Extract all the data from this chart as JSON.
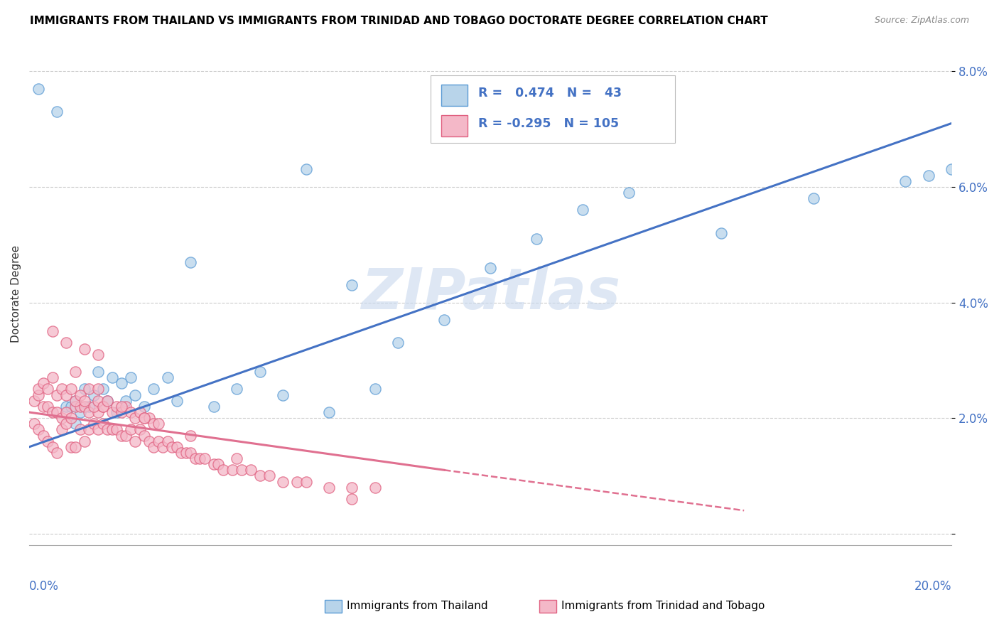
{
  "title": "IMMIGRANTS FROM THAILAND VS IMMIGRANTS FROM TRINIDAD AND TOBAGO DOCTORATE DEGREE CORRELATION CHART",
  "source": "Source: ZipAtlas.com",
  "ylabel": "Doctorate Degree",
  "xlim": [
    0.0,
    0.2
  ],
  "ylim": [
    -0.002,
    0.085
  ],
  "yticks": [
    0.0,
    0.02,
    0.04,
    0.06,
    0.08
  ],
  "ytick_labels": [
    "",
    "2.0%",
    "4.0%",
    "6.0%",
    "8.0%"
  ],
  "legend_R1": "0.474",
  "legend_N1": "43",
  "legend_R2": "-0.295",
  "legend_N2": "105",
  "color_thailand_fill": "#b8d4ea",
  "color_thailand_edge": "#5b9bd5",
  "color_tt_fill": "#f4b8c8",
  "color_tt_edge": "#e06080",
  "color_line_thailand": "#4472c4",
  "color_line_tt": "#e07090",
  "watermark_color": "#c8d8ee",
  "thailand_x": [
    0.002,
    0.006,
    0.008,
    0.009,
    0.01,
    0.01,
    0.011,
    0.012,
    0.013,
    0.014,
    0.015,
    0.016,
    0.017,
    0.018,
    0.019,
    0.02,
    0.021,
    0.022,
    0.023,
    0.025,
    0.027,
    0.03,
    0.032,
    0.035,
    0.04,
    0.045,
    0.05,
    0.055,
    0.06,
    0.065,
    0.07,
    0.075,
    0.08,
    0.09,
    0.1,
    0.11,
    0.12,
    0.13,
    0.15,
    0.17,
    0.19,
    0.195,
    0.2
  ],
  "thailand_y": [
    0.077,
    0.073,
    0.022,
    0.022,
    0.019,
    0.023,
    0.021,
    0.025,
    0.022,
    0.024,
    0.028,
    0.025,
    0.023,
    0.027,
    0.021,
    0.026,
    0.023,
    0.027,
    0.024,
    0.022,
    0.025,
    0.027,
    0.023,
    0.047,
    0.022,
    0.025,
    0.028,
    0.024,
    0.063,
    0.021,
    0.043,
    0.025,
    0.033,
    0.037,
    0.046,
    0.051,
    0.056,
    0.059,
    0.052,
    0.058,
    0.061,
    0.062,
    0.063
  ],
  "tt_x": [
    0.001,
    0.001,
    0.002,
    0.002,
    0.003,
    0.003,
    0.004,
    0.004,
    0.005,
    0.005,
    0.006,
    0.006,
    0.007,
    0.007,
    0.008,
    0.008,
    0.009,
    0.009,
    0.01,
    0.01,
    0.011,
    0.011,
    0.012,
    0.012,
    0.013,
    0.013,
    0.014,
    0.015,
    0.015,
    0.016,
    0.016,
    0.017,
    0.018,
    0.019,
    0.02,
    0.021,
    0.022,
    0.023,
    0.024,
    0.025,
    0.026,
    0.027,
    0.028,
    0.029,
    0.03,
    0.031,
    0.032,
    0.033,
    0.034,
    0.035,
    0.036,
    0.037,
    0.038,
    0.04,
    0.041,
    0.042,
    0.044,
    0.046,
    0.048,
    0.05,
    0.052,
    0.055,
    0.058,
    0.06,
    0.065,
    0.07,
    0.075,
    0.008,
    0.012,
    0.015,
    0.002,
    0.003,
    0.004,
    0.005,
    0.006,
    0.007,
    0.008,
    0.009,
    0.01,
    0.011,
    0.012,
    0.013,
    0.014,
    0.015,
    0.016,
    0.017,
    0.018,
    0.019,
    0.02,
    0.021,
    0.022,
    0.023,
    0.024,
    0.025,
    0.026,
    0.027,
    0.028,
    0.005,
    0.01,
    0.015,
    0.02,
    0.025,
    0.035,
    0.045,
    0.07
  ],
  "tt_y": [
    0.019,
    0.023,
    0.018,
    0.024,
    0.017,
    0.022,
    0.016,
    0.022,
    0.015,
    0.021,
    0.014,
    0.021,
    0.018,
    0.02,
    0.019,
    0.021,
    0.015,
    0.02,
    0.015,
    0.022,
    0.018,
    0.022,
    0.016,
    0.022,
    0.018,
    0.021,
    0.019,
    0.021,
    0.018,
    0.019,
    0.022,
    0.018,
    0.018,
    0.018,
    0.017,
    0.017,
    0.018,
    0.016,
    0.018,
    0.017,
    0.016,
    0.015,
    0.016,
    0.015,
    0.016,
    0.015,
    0.015,
    0.014,
    0.014,
    0.014,
    0.013,
    0.013,
    0.013,
    0.012,
    0.012,
    0.011,
    0.011,
    0.011,
    0.011,
    0.01,
    0.01,
    0.009,
    0.009,
    0.009,
    0.008,
    0.008,
    0.008,
    0.033,
    0.032,
    0.031,
    0.025,
    0.026,
    0.025,
    0.027,
    0.024,
    0.025,
    0.024,
    0.025,
    0.023,
    0.024,
    0.023,
    0.025,
    0.022,
    0.023,
    0.022,
    0.023,
    0.021,
    0.022,
    0.021,
    0.022,
    0.021,
    0.02,
    0.021,
    0.02,
    0.02,
    0.019,
    0.019,
    0.035,
    0.028,
    0.025,
    0.022,
    0.02,
    0.017,
    0.013,
    0.006
  ],
  "th_line": [
    [
      0.0,
      0.015
    ],
    [
      0.2,
      0.071
    ]
  ],
  "tt_line_solid": [
    [
      0.0,
      0.021
    ],
    [
      0.09,
      0.011
    ]
  ],
  "tt_line_dash": [
    [
      0.09,
      0.011
    ],
    [
      0.155,
      0.004
    ]
  ]
}
